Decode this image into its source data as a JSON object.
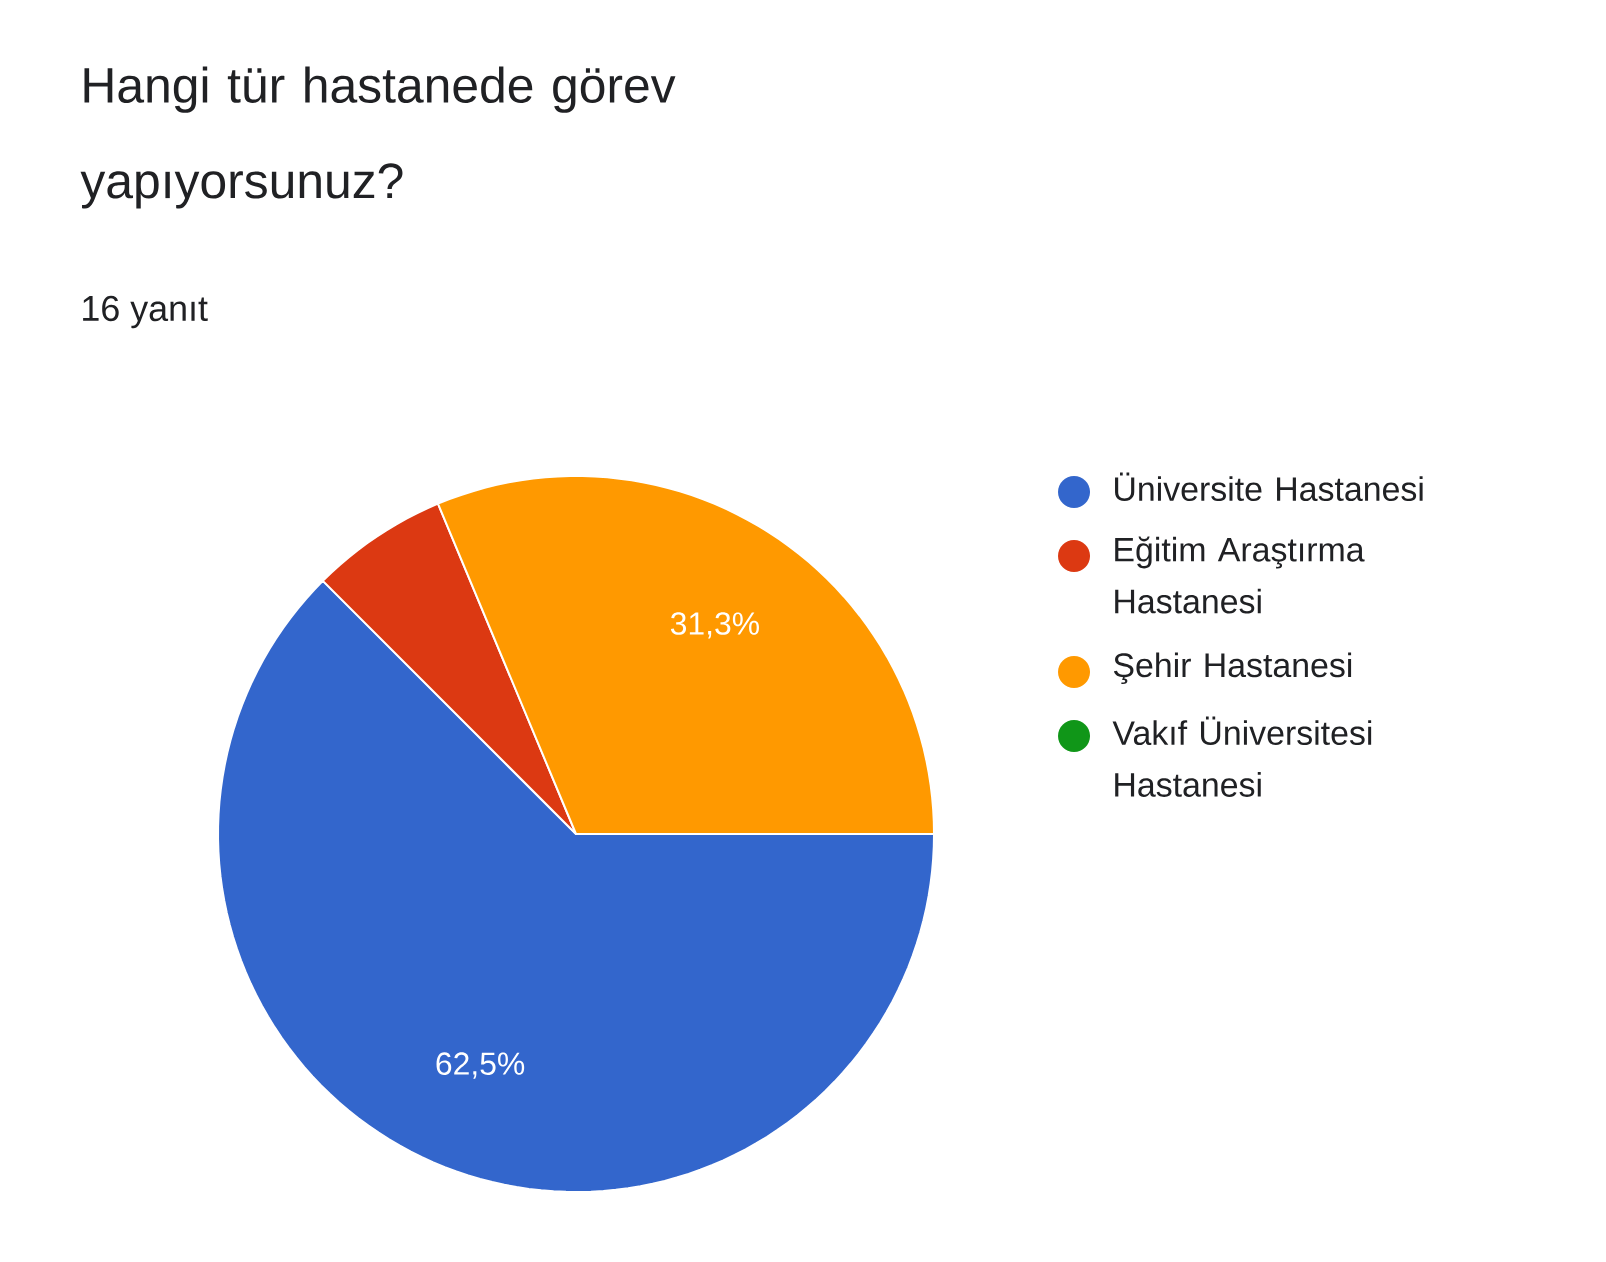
{
  "chart_data": {
    "type": "pie",
    "title": "Hangi tür hastanede görev yapıyorsunuz?",
    "subtitle": "16 yanıt",
    "categories": [
      "Üniversite Hastanesi",
      "Eğitim Araştırma Hastanesi",
      "Şehir Hastanesi",
      "Vakıf Üniversitesi Hastanesi"
    ],
    "values": [
      62.5,
      6.2,
      31.3,
      0
    ],
    "colors": [
      "#3366cc",
      "#dc3912",
      "#ff9900",
      "#109618"
    ],
    "value_labels": [
      "62,5%",
      null,
      "31,3%",
      null
    ],
    "legend": "right"
  }
}
